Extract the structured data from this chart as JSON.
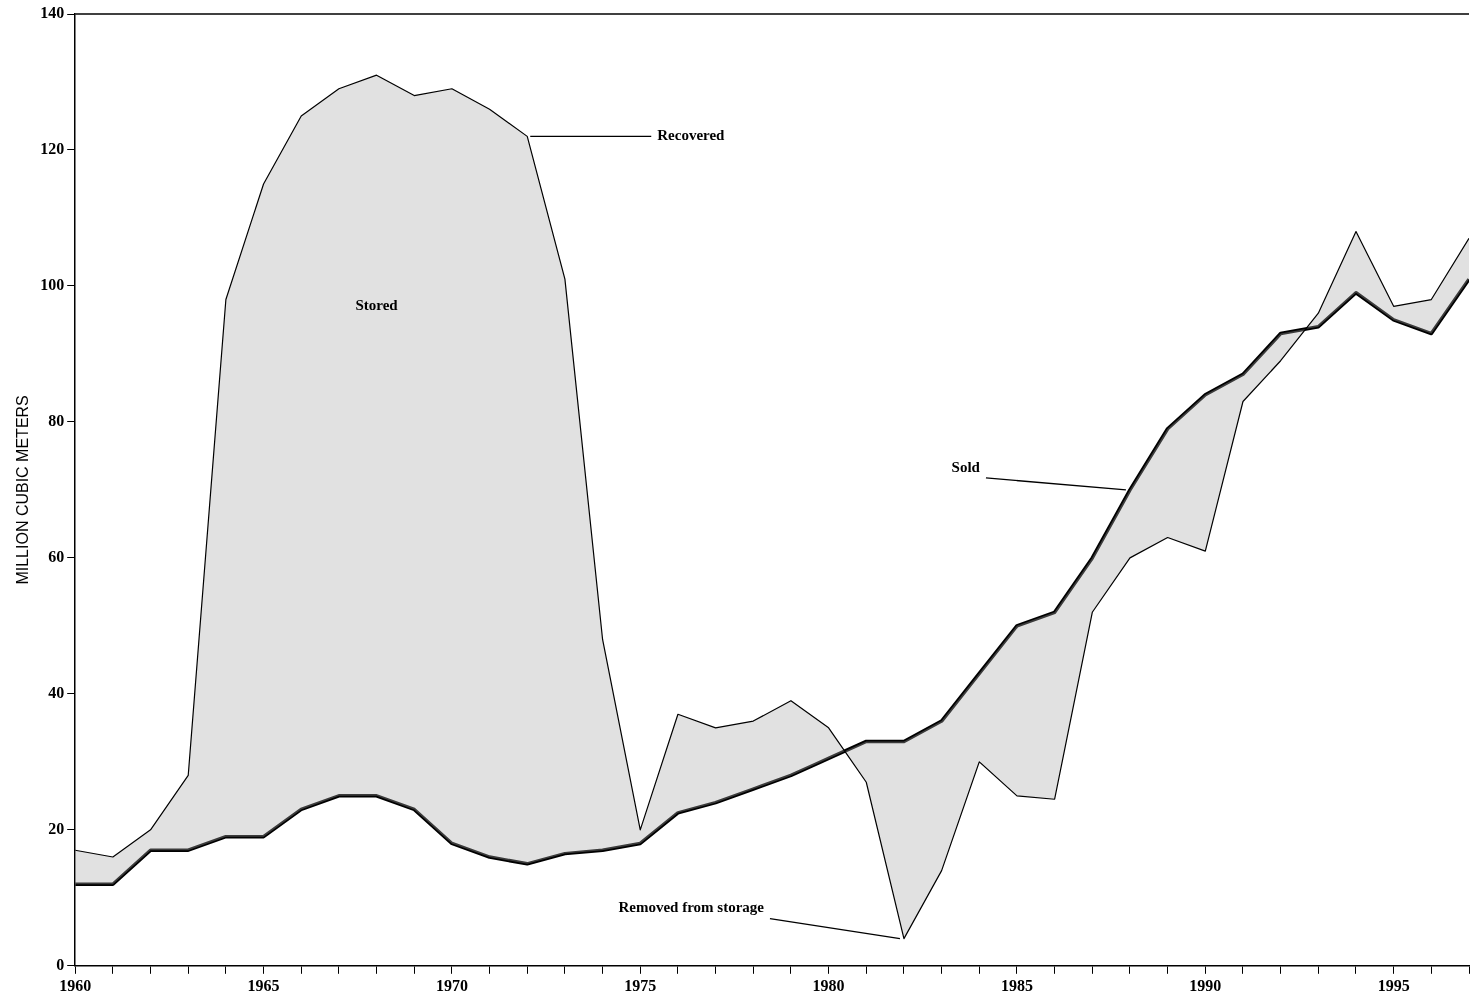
{
  "chart_data": {
    "type": "line",
    "ylabel": "MILLION CUBIC METERS",
    "x": [
      1960,
      1961,
      1962,
      1963,
      1964,
      1965,
      1966,
      1967,
      1968,
      1969,
      1970,
      1971,
      1972,
      1973,
      1974,
      1975,
      1976,
      1977,
      1978,
      1979,
      1980,
      1981,
      1982,
      1983,
      1984,
      1985,
      1986,
      1987,
      1988,
      1989,
      1990,
      1991,
      1992,
      1993,
      1994,
      1995,
      1996,
      1997
    ],
    "series": [
      {
        "color": "#000000",
        "values": [
          17,
          16,
          20,
          28,
          98,
          115,
          125,
          129,
          131,
          128,
          129,
          126,
          122,
          101,
          48,
          20,
          37,
          35,
          36,
          39,
          35,
          27,
          4,
          14,
          30,
          25,
          24.5,
          52,
          60,
          63,
          61,
          83,
          89,
          96,
          108,
          97,
          98,
          107
        ]
      },
      {
        "color": "#000000",
        "values": [
          12,
          12,
          17,
          17,
          19,
          19,
          23,
          25,
          25,
          23,
          18,
          16,
          15,
          16.5,
          17,
          18,
          22.5,
          24,
          26,
          28,
          30.5,
          33,
          33,
          36,
          43,
          50,
          52,
          60,
          70,
          79,
          84,
          87,
          93,
          94,
          99,
          95,
          93,
          101
        ]
      }
    ],
    "annotations": [
      "Stored",
      {
        "text": "Recovered",
        "x": 1972,
        "y": 122
      },
      {
        "text": "Sold",
        "x": 1988,
        "y": 70
      },
      {
        "text": "Removed from storage",
        "x": 1982,
        "y": 4
      }
    ],
    "xlim": [
      1960,
      1997
    ],
    "xticks": [
      1960,
      {
        "value": 1961,
        "label": null
      },
      {
        "value": 1962,
        "label": null
      },
      {
        "value": 1963,
        "label": null
      },
      {
        "value": 1964,
        "label": null
      },
      1965,
      {
        "value": 1966,
        "label": null
      },
      {
        "value": 1967,
        "label": null
      },
      {
        "value": 1968,
        "label": null
      },
      {
        "value": 1969,
        "label": null
      },
      1970,
      {
        "value": 1971,
        "label": null
      },
      {
        "value": 1972,
        "label": null
      },
      {
        "value": 1973,
        "label": null
      },
      {
        "value": 1974,
        "label": null
      },
      1975,
      {
        "value": 1976,
        "label": null
      },
      {
        "value": 1977,
        "label": null
      },
      {
        "value": 1978,
        "label": null
      },
      {
        "value": 1979,
        "label": null
      },
      1980,
      {
        "value": 1981,
        "label": null
      },
      {
        "value": 1982,
        "label": null
      },
      {
        "value": 1983,
        "label": null
      },
      {
        "value": 1984,
        "label": null
      },
      1985,
      {
        "value": 1986,
        "label": null
      },
      {
        "value": 1987,
        "label": null
      },
      {
        "value": 1988,
        "label": null
      },
      {
        "value": 1989,
        "label": null
      },
      1990,
      {
        "value": 1991,
        "label": null
      },
      {
        "value": 1992,
        "label": null
      },
      {
        "value": 1993,
        "label": null
      },
      {
        "value": 1994,
        "label": null
      },
      1995,
      {
        "value": 1996,
        "label": null
      },
      {
        "value": 1997,
        "label": null
      }
    ],
    "ylim": [
      0,
      140
    ],
    "yticks": [
      0,
      20,
      40,
      60,
      80,
      100,
      120,
      140
    ],
    "grid": false,
    "legend": false,
    "marker": "none",
    "line_style": "solid"
  }
}
